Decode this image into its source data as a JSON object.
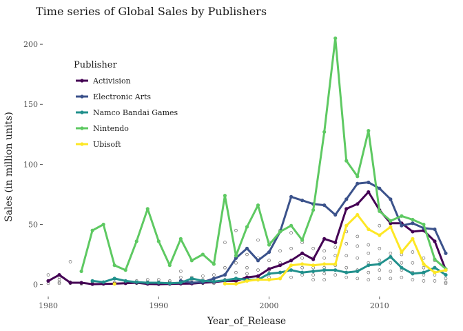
{
  "chart_data": {
    "type": "line",
    "title": "Time series of Global Sales by Publishers",
    "xlabel": "Year_of_Release",
    "ylabel": "Sales (in million units)",
    "xlim": [
      1979.5,
      2016.5
    ],
    "ylim": [
      -10,
      215
    ],
    "x_ticks": [
      1980,
      1990,
      2000,
      2010
    ],
    "y_ticks": [
      0,
      50,
      100,
      150,
      200
    ],
    "grid": false,
    "legend": {
      "title": "Publisher",
      "position": "top-left"
    },
    "x": [
      1980,
      1981,
      1982,
      1983,
      1984,
      1985,
      1986,
      1987,
      1988,
      1989,
      1990,
      1991,
      1992,
      1993,
      1994,
      1995,
      1996,
      1997,
      1998,
      1999,
      2000,
      2001,
      2002,
      2003,
      2004,
      2005,
      2006,
      2007,
      2008,
      2009,
      2010,
      2011,
      2012,
      2013,
      2014,
      2015,
      2016
    ],
    "series": [
      {
        "name": "Activision",
        "color": "#440154",
        "values": [
          3,
          8,
          1.5,
          1.5,
          0.3,
          0.5,
          0.7,
          1,
          1.5,
          0.5,
          0.3,
          0.5,
          0.7,
          0.8,
          1.5,
          2,
          3,
          3,
          6,
          7,
          13,
          16,
          20,
          26,
          21,
          38,
          35,
          63,
          67,
          77,
          62,
          51,
          51,
          44,
          45,
          36,
          12
        ]
      },
      {
        "name": "Electronic Arts",
        "color": "#3b528b",
        "values": [
          null,
          null,
          null,
          null,
          null,
          null,
          null,
          null,
          null,
          null,
          null,
          null,
          3,
          1.5,
          2,
          5,
          8,
          22,
          30,
          20,
          27,
          44,
          73,
          70,
          67,
          66,
          58,
          71,
          84,
          85,
          80,
          71,
          49,
          51,
          47,
          46,
          26
        ]
      },
      {
        "name": "Namco Bandai Games",
        "color": "#21908c",
        "values": [
          null,
          null,
          null,
          null,
          3,
          2,
          5,
          3,
          2,
          1.5,
          1.5,
          1,
          1.5,
          5,
          3,
          2.5,
          3.5,
          5,
          4,
          4,
          9,
          10,
          12,
          10,
          11,
          12,
          12,
          10,
          11,
          16,
          17,
          23,
          14,
          9,
          10,
          14,
          8
        ]
      },
      {
        "name": "Nintendo",
        "color": "#5ec962",
        "values": [
          null,
          null,
          null,
          11,
          45,
          50,
          16,
          12,
          36,
          63,
          36,
          16,
          38,
          20,
          25,
          17,
          74,
          24,
          48,
          66,
          33,
          44,
          49,
          37,
          62,
          127,
          205,
          103,
          90,
          128,
          61,
          53,
          57,
          54,
          50,
          21,
          13
        ]
      },
      {
        "name": "Ubisoft",
        "color": "#fde725",
        "values": [
          null,
          null,
          null,
          null,
          null,
          null,
          0.5,
          null,
          null,
          null,
          null,
          null,
          null,
          null,
          null,
          null,
          0.7,
          0.5,
          3,
          4,
          4,
          5,
          16,
          17,
          16,
          17,
          17,
          49,
          58,
          46,
          41,
          48,
          27,
          38,
          17,
          10,
          12
        ]
      }
    ],
    "background_points": [
      [
        1980,
        3
      ],
      [
        1980,
        1
      ],
      [
        1980,
        8
      ],
      [
        1981,
        2
      ],
      [
        1981,
        4
      ],
      [
        1981,
        6
      ],
      [
        1981,
        1
      ],
      [
        1982,
        19
      ],
      [
        1982,
        1
      ],
      [
        1982,
        2
      ],
      [
        1983,
        0.5
      ],
      [
        1983,
        1
      ],
      [
        1984,
        1
      ],
      [
        1984,
        2
      ],
      [
        1985,
        1
      ],
      [
        1985,
        0.5
      ],
      [
        1986,
        2
      ],
      [
        1986,
        1
      ],
      [
        1987,
        1
      ],
      [
        1987,
        2
      ],
      [
        1988,
        1
      ],
      [
        1988,
        3
      ],
      [
        1989,
        2
      ],
      [
        1989,
        4
      ],
      [
        1989,
        1
      ],
      [
        1990,
        1
      ],
      [
        1990,
        2
      ],
      [
        1990,
        4
      ],
      [
        1991,
        1
      ],
      [
        1991,
        2
      ],
      [
        1991,
        3
      ],
      [
        1992,
        3
      ],
      [
        1992,
        6
      ],
      [
        1992,
        11
      ],
      [
        1992,
        1
      ],
      [
        1993,
        2
      ],
      [
        1993,
        4
      ],
      [
        1993,
        6
      ],
      [
        1994,
        2
      ],
      [
        1994,
        4
      ],
      [
        1994,
        7
      ],
      [
        1994,
        1
      ],
      [
        1995,
        2
      ],
      [
        1995,
        5
      ],
      [
        1995,
        8
      ],
      [
        1995,
        1
      ],
      [
        1996,
        35
      ],
      [
        1996,
        14
      ],
      [
        1996,
        8
      ],
      [
        1996,
        4
      ],
      [
        1997,
        45
      ],
      [
        1997,
        18
      ],
      [
        1997,
        10
      ],
      [
        1997,
        5
      ],
      [
        1998,
        25
      ],
      [
        1998,
        14
      ],
      [
        1998,
        9
      ],
      [
        1998,
        5
      ],
      [
        1999,
        37
      ],
      [
        1999,
        22
      ],
      [
        1999,
        12
      ],
      [
        1999,
        6
      ],
      [
        2000,
        35
      ],
      [
        2000,
        20
      ],
      [
        2000,
        12
      ],
      [
        2000,
        6
      ],
      [
        2001,
        45
      ],
      [
        2001,
        28
      ],
      [
        2001,
        18
      ],
      [
        2001,
        10
      ],
      [
        2001,
        5
      ],
      [
        2002,
        43
      ],
      [
        2002,
        30
      ],
      [
        2002,
        20
      ],
      [
        2002,
        12
      ],
      [
        2002,
        6
      ],
      [
        2003,
        35
      ],
      [
        2003,
        22
      ],
      [
        2003,
        14
      ],
      [
        2003,
        8
      ],
      [
        2004,
        30
      ],
      [
        2004,
        22
      ],
      [
        2004,
        14
      ],
      [
        2004,
        8
      ],
      [
        2004,
        4
      ],
      [
        2005,
        28
      ],
      [
        2005,
        22
      ],
      [
        2005,
        14
      ],
      [
        2005,
        9
      ],
      [
        2005,
        4
      ],
      [
        2006,
        31
      ],
      [
        2006,
        24
      ],
      [
        2006,
        16
      ],
      [
        2006,
        8
      ],
      [
        2007,
        44
      ],
      [
        2007,
        34
      ],
      [
        2007,
        24
      ],
      [
        2007,
        14
      ],
      [
        2007,
        6
      ],
      [
        2008,
        40
      ],
      [
        2008,
        32
      ],
      [
        2008,
        22
      ],
      [
        2008,
        12
      ],
      [
        2008,
        5
      ],
      [
        2009,
        33
      ],
      [
        2009,
        26
      ],
      [
        2009,
        18
      ],
      [
        2009,
        10
      ],
      [
        2009,
        4
      ],
      [
        2010,
        49
      ],
      [
        2010,
        30
      ],
      [
        2010,
        20
      ],
      [
        2010,
        12
      ],
      [
        2010,
        5
      ],
      [
        2011,
        26
      ],
      [
        2011,
        18
      ],
      [
        2011,
        11
      ],
      [
        2011,
        5
      ],
      [
        2012,
        25
      ],
      [
        2012,
        18
      ],
      [
        2012,
        12
      ],
      [
        2012,
        6
      ],
      [
        2013,
        27
      ],
      [
        2013,
        18
      ],
      [
        2013,
        10
      ],
      [
        2013,
        4
      ],
      [
        2014,
        22
      ],
      [
        2014,
        14
      ],
      [
        2014,
        8
      ],
      [
        2014,
        3
      ],
      [
        2015,
        20
      ],
      [
        2015,
        14
      ],
      [
        2015,
        8
      ],
      [
        2015,
        3
      ],
      [
        2016,
        8
      ],
      [
        2016,
        5
      ],
      [
        2016,
        2
      ],
      [
        2016,
        1
      ]
    ]
  }
}
